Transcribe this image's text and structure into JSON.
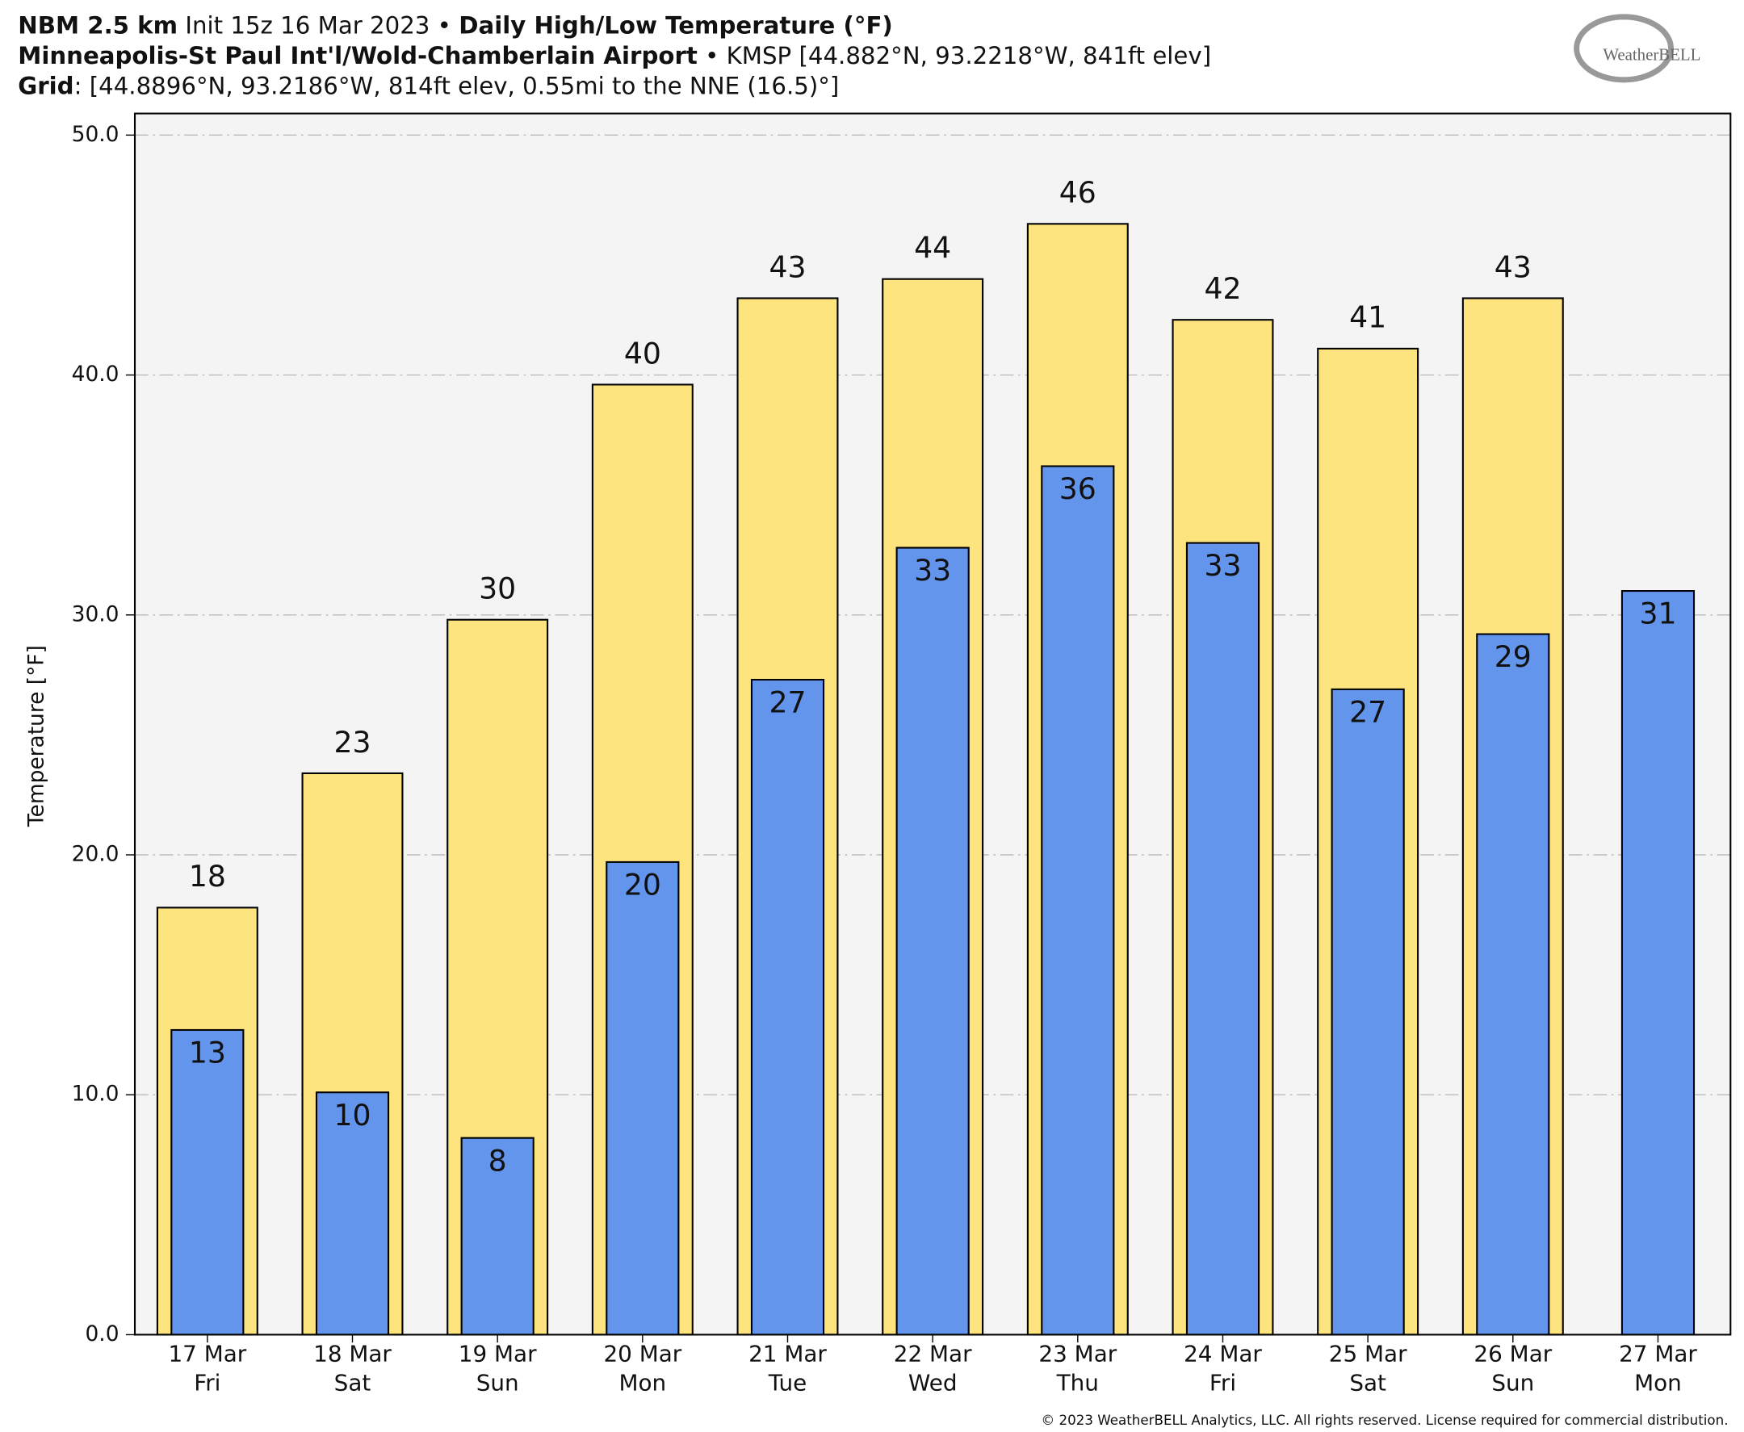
{
  "chart_data": {
    "type": "bar",
    "title_lines": [
      [
        {
          "text": "NBM 2.5 km",
          "bold": true
        },
        {
          "text": " Init 15z 16 Mar 2023 • ",
          "bold": false
        },
        {
          "text": "Daily High/Low Temperature (°F)",
          "bold": true
        }
      ],
      [
        {
          "text": "Minneapolis-St Paul Int'l/Wold-Chamberlain Airport",
          "bold": true
        },
        {
          "text": " • KMSP [44.882°N, 93.2218°W, 841ft elev]",
          "bold": false
        }
      ],
      [
        {
          "text": "Grid",
          "bold": true
        },
        {
          "text": ": [44.8896°N, 93.2186°W, 814ft elev, 0.55mi to the NNE (16.5)°]",
          "bold": false
        }
      ]
    ],
    "logo": "WeatherBELL",
    "copyright": "© 2023 WeatherBELL Analytics, LLC. All rights reserved. License required for commercial distribution.",
    "ylabel": "Temperature [°F]",
    "categories": [
      "17 Mar",
      "18 Mar",
      "19 Mar",
      "20 Mar",
      "21 Mar",
      "22 Mar",
      "23 Mar",
      "24 Mar",
      "25 Mar",
      "26 Mar",
      "27 Mar"
    ],
    "weekdays": [
      "Fri",
      "Sat",
      "Sun",
      "Mon",
      "Tue",
      "Wed",
      "Thu",
      "Fri",
      "Sat",
      "Sun",
      "Mon"
    ],
    "series": [
      {
        "name": "High",
        "color": "#fde47f",
        "values": [
          17.8,
          23.4,
          29.8,
          39.6,
          43.2,
          44.0,
          46.3,
          42.3,
          41.1,
          43.2,
          null
        ],
        "value_labels": [
          "18",
          "23",
          "30",
          "40",
          "43",
          "44",
          "46",
          "42",
          "41",
          "43",
          null
        ]
      },
      {
        "name": "Low",
        "color": "#6495ed",
        "values": [
          12.7,
          10.1,
          8.2,
          19.7,
          27.3,
          32.8,
          36.2,
          33.0,
          26.9,
          29.2,
          31.0
        ],
        "value_labels": [
          "13",
          "10",
          "8",
          "20",
          "27",
          "33",
          "36",
          "33",
          "27",
          "29",
          "31"
        ]
      }
    ],
    "ylim": [
      0,
      50.9
    ],
    "yticks": [
      {
        "value": 0,
        "label": "0.0"
      },
      {
        "value": 10,
        "label": "10.0"
      },
      {
        "value": 20,
        "label": "20.0"
      },
      {
        "value": 30,
        "label": "30.0"
      },
      {
        "value": 40,
        "label": "40.0"
      },
      {
        "value": 50,
        "label": "50.0"
      }
    ],
    "grid": true
  }
}
